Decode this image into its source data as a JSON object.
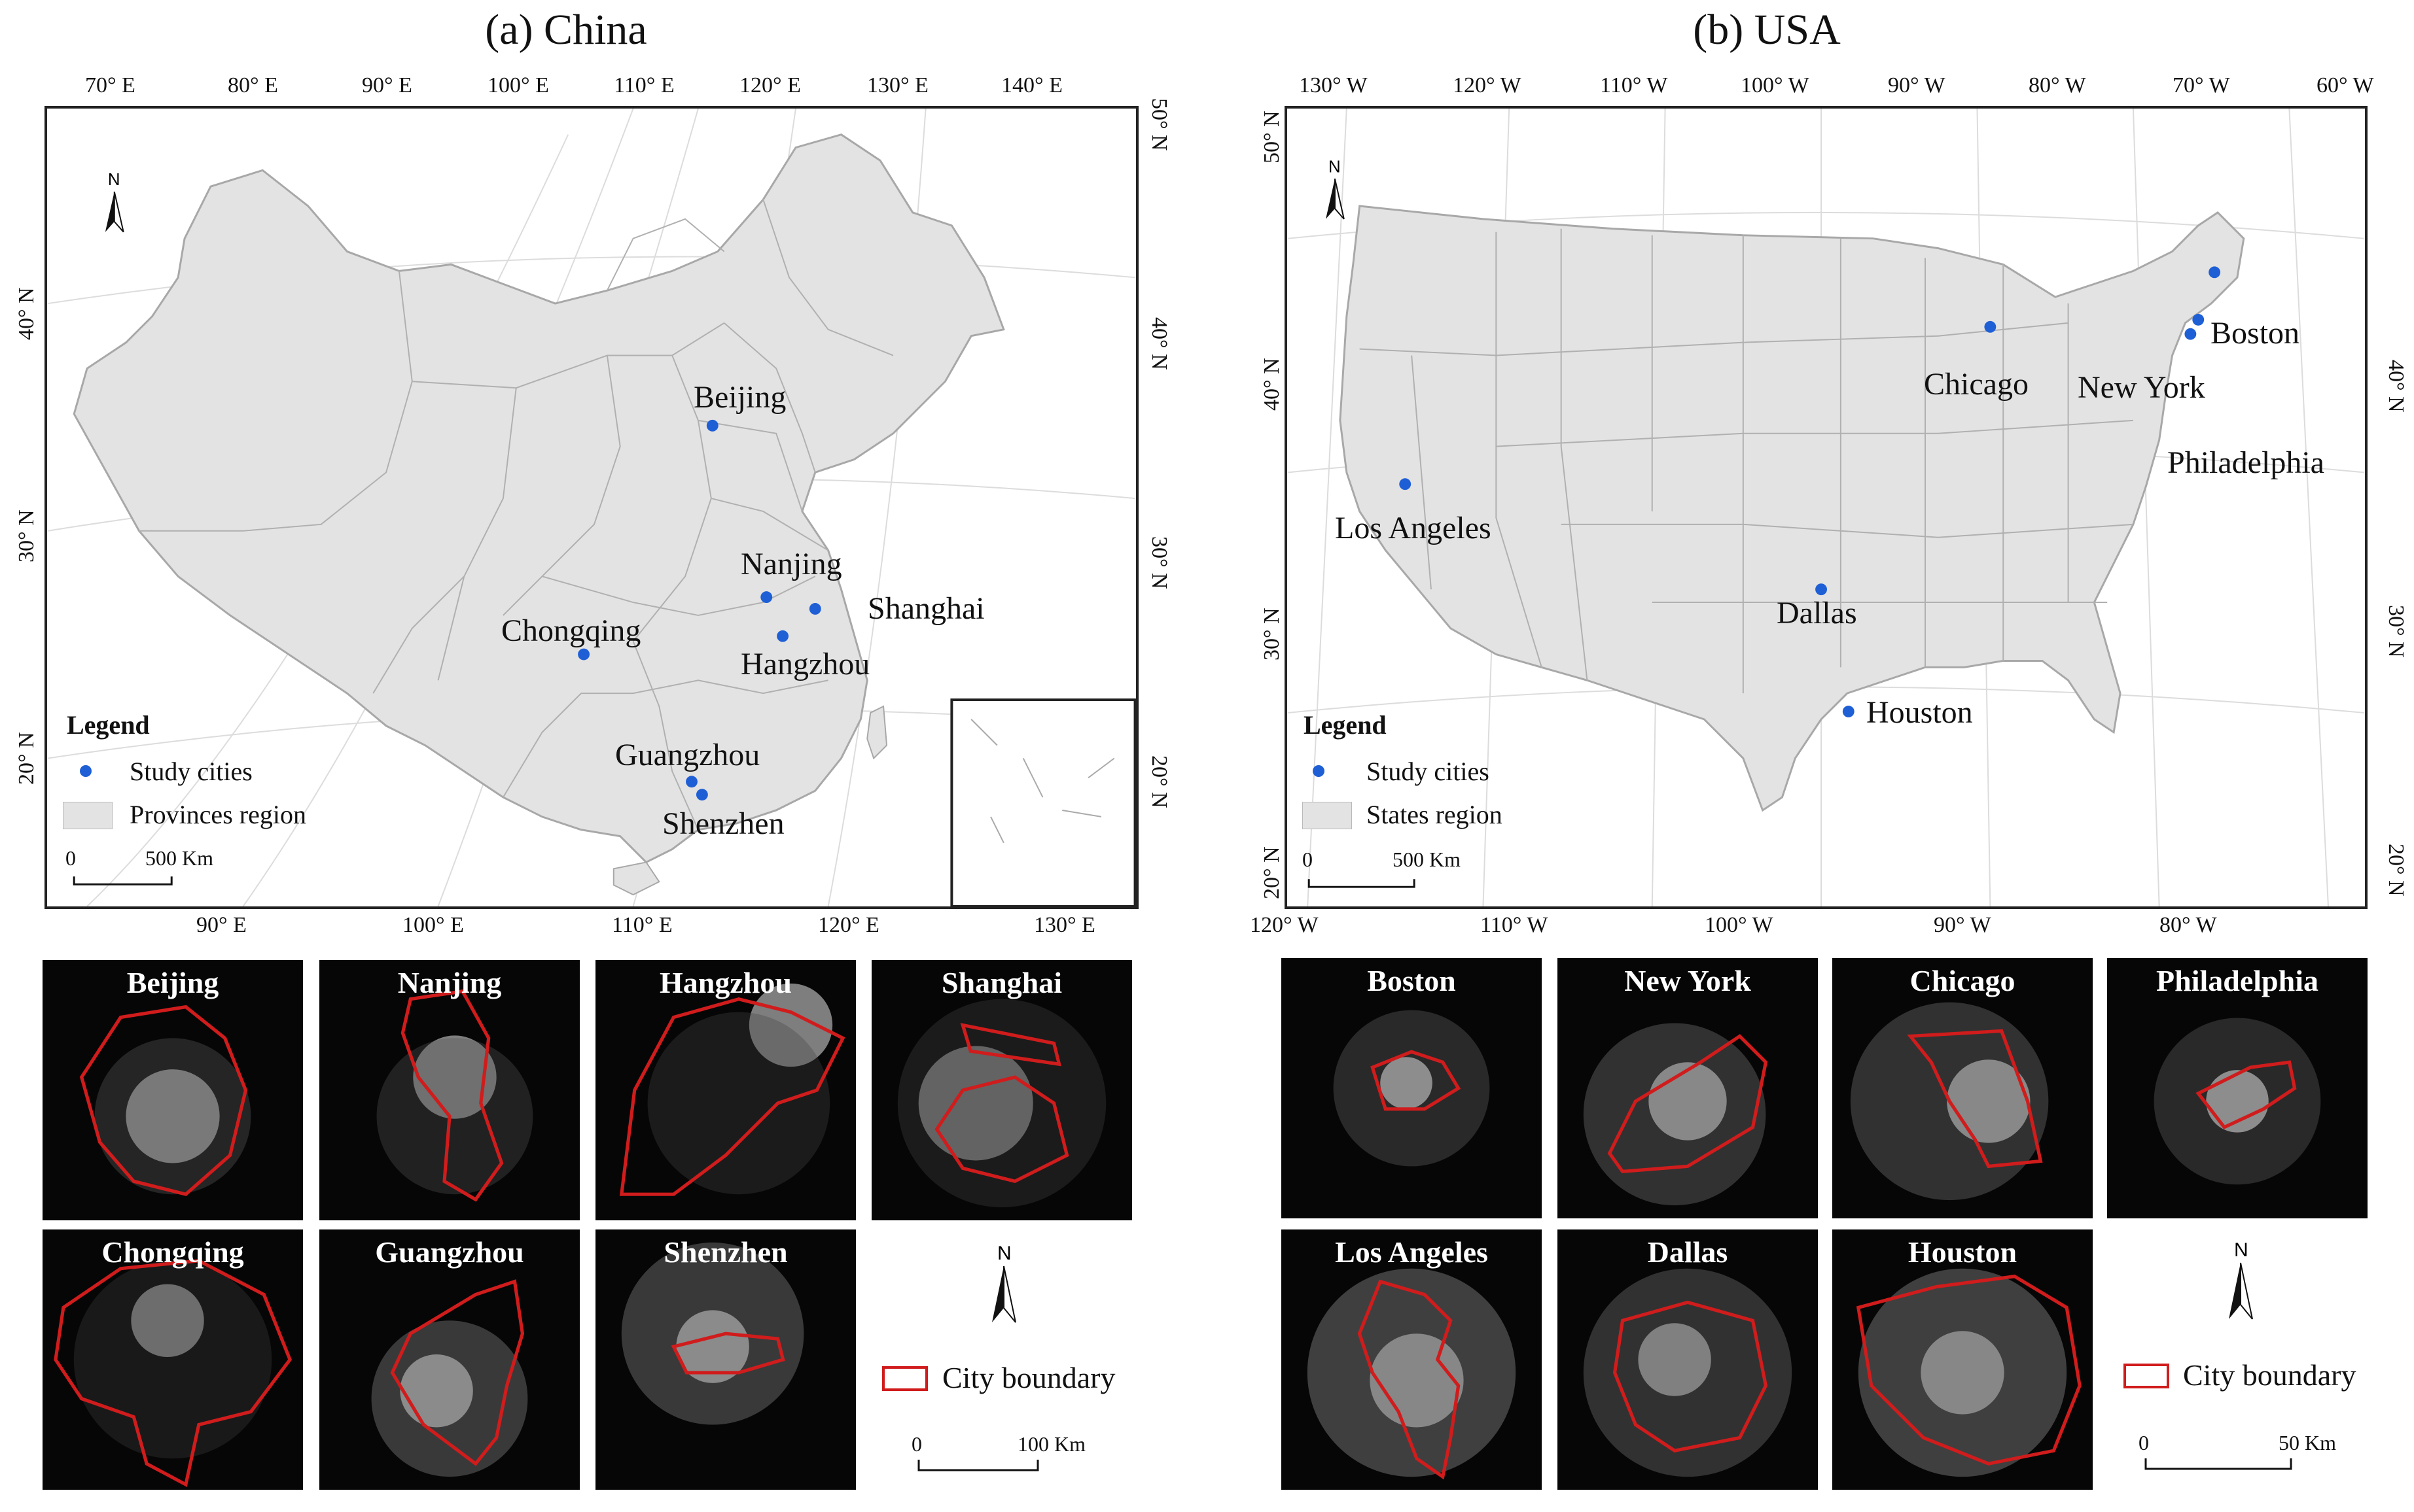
{
  "china": {
    "title": "(a) China",
    "top_ticks": [
      "70° E",
      "80° E",
      "90° E",
      "100° E",
      "110° E",
      "120° E",
      "130° E",
      "140° E"
    ],
    "bottom_ticks": [
      "90° E",
      "100° E",
      "110° E",
      "120° E",
      "130° E"
    ],
    "left_ticks": [
      "40° N",
      "30° N",
      "20° N"
    ],
    "right_ticks": [
      "50° N",
      "40° N",
      "30° N",
      "20° N"
    ],
    "cities": [
      "Beijing",
      "Nanjing",
      "Shanghai",
      "Chongqing",
      "Hangzhou",
      "Guangzhou",
      "Shenzhen"
    ],
    "legend": {
      "title": "Legend",
      "point": "Study cities",
      "region": "Provinces region",
      "scale_zero": "0",
      "scale_value": "500 Km"
    },
    "north": "N",
    "panels": [
      "Beijing",
      "Nanjing",
      "Hangzhou",
      "Shanghai",
      "Chongqing",
      "Guangzhou",
      "Shenzhen"
    ],
    "boundary_label": "City boundary",
    "scale_zero": "0",
    "scale_value": "100 Km"
  },
  "usa": {
    "title": "(b) USA",
    "top_ticks": [
      "130° W",
      "120° W",
      "110° W",
      "100° W",
      "90° W",
      "80° W",
      "70° W",
      "60° W"
    ],
    "bottom_ticks": [
      "120° W",
      "110° W",
      "100° W",
      "90° W",
      "80° W"
    ],
    "left_ticks": [
      "50° N",
      "40° N",
      "30° N",
      "20° N"
    ],
    "right_ticks": [
      "40° N",
      "30° N",
      "20° N"
    ],
    "cities": [
      "Boston",
      "Chicago",
      "New York",
      "Philadelphia",
      "Los Angeles",
      "Dallas",
      "Houston"
    ],
    "legend": {
      "title": "Legend",
      "point": "Study cities",
      "region": "States region",
      "scale_zero": "0",
      "scale_value": "500 Km"
    },
    "north": "N",
    "panels": [
      "Boston",
      "New York",
      "Chicago",
      "Philadelphia",
      "Los Angeles",
      "Dallas",
      "Houston"
    ],
    "boundary_label": "City boundary",
    "scale_zero": "0",
    "scale_value": "50 Km"
  },
  "colors": {
    "region_fill": "#e3e3e3",
    "region_stroke": "#b0b0b0",
    "city_dot": "#1f5fd6",
    "boundary": "#d01c1c",
    "night_bg": "#060606"
  }
}
